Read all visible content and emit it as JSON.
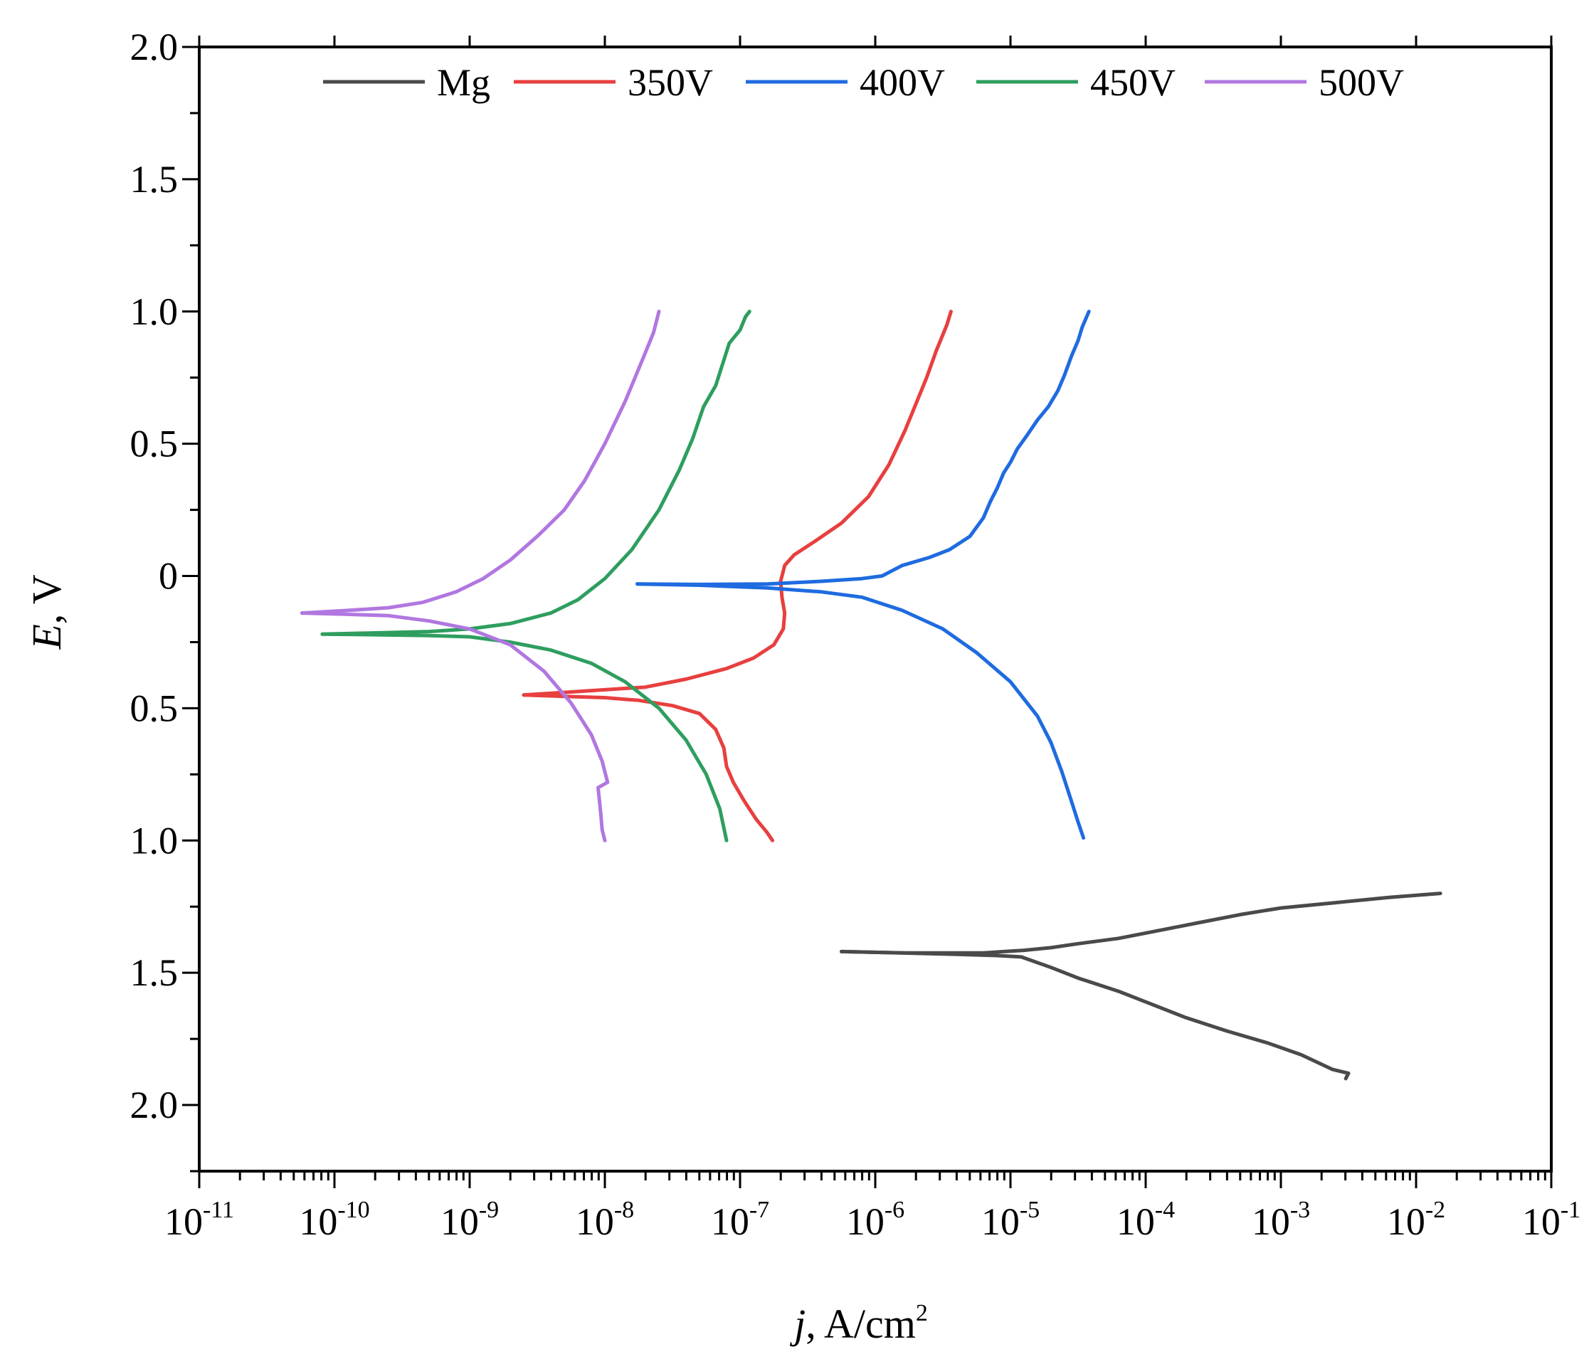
{
  "chart_data": {
    "type": "line",
    "xlabel_italic": "j",
    "xlabel_rest": ", A/cm",
    "xlabel_sup": "2",
    "ylabel_italic": "E",
    "ylabel_rest": ", V",
    "x_scale": "log",
    "xlim": [
      -11,
      -1
    ],
    "ylim": [
      -2.25,
      2.0
    ],
    "x_ticks": [
      {
        "base": "10",
        "exp": "-11"
      },
      {
        "base": "10",
        "exp": "-10"
      },
      {
        "base": "10",
        "exp": "-9"
      },
      {
        "base": "10",
        "exp": "-8"
      },
      {
        "base": "10",
        "exp": "-7"
      },
      {
        "base": "10",
        "exp": "-6"
      },
      {
        "base": "10",
        "exp": "-5"
      },
      {
        "base": "10",
        "exp": "-4"
      },
      {
        "base": "10",
        "exp": "-3"
      },
      {
        "base": "10",
        "exp": "-2"
      },
      {
        "base": "10",
        "exp": "-1"
      }
    ],
    "y_ticks": [
      {
        "value": 2.0,
        "label": "2.0"
      },
      {
        "value": 1.5,
        "label": "1.5"
      },
      {
        "value": 1.0,
        "label": "1.0"
      },
      {
        "value": 0.5,
        "label": "0.5"
      },
      {
        "value": 0.0,
        "label": "0"
      },
      {
        "value": -0.5,
        "label": "0.5"
      },
      {
        "value": -1.0,
        "label": "1.0"
      },
      {
        "value": -1.5,
        "label": "1.5"
      },
      {
        "value": -2.0,
        "label": "2.0"
      }
    ],
    "legend_position": "top",
    "series": [
      {
        "name": "Mg",
        "color": "#4a4a4a",
        "points": [
          [
            -6.25,
            -1.42
          ],
          [
            -5.8,
            -1.425
          ],
          [
            -5.5,
            -1.425
          ],
          [
            -5.2,
            -1.425
          ],
          [
            -5.05,
            -1.42
          ],
          [
            -4.9,
            -1.415
          ],
          [
            -4.7,
            -1.405
          ],
          [
            -4.5,
            -1.39
          ],
          [
            -4.2,
            -1.37
          ],
          [
            -3.9,
            -1.34
          ],
          [
            -3.6,
            -1.31
          ],
          [
            -3.3,
            -1.28
          ],
          [
            -3.0,
            -1.255
          ],
          [
            -2.6,
            -1.235
          ],
          [
            -2.2,
            -1.215
          ],
          [
            -1.82,
            -1.2
          ]
        ]
      },
      {
        "name": "Mg",
        "color": "#4a4a4a",
        "points": [
          [
            -6.25,
            -1.42
          ],
          [
            -5.8,
            -1.425
          ],
          [
            -5.4,
            -1.43
          ],
          [
            -5.1,
            -1.435
          ],
          [
            -4.92,
            -1.44
          ],
          [
            -4.7,
            -1.48
          ],
          [
            -4.5,
            -1.52
          ],
          [
            -4.2,
            -1.57
          ],
          [
            -3.95,
            -1.62
          ],
          [
            -3.7,
            -1.67
          ],
          [
            -3.4,
            -1.72
          ],
          [
            -3.1,
            -1.765
          ],
          [
            -2.85,
            -1.81
          ],
          [
            -2.62,
            -1.865
          ],
          [
            -2.5,
            -1.88
          ],
          [
            -2.52,
            -1.9
          ]
        ]
      },
      {
        "name": "350V",
        "color": "#e83f3f",
        "points": [
          [
            -8.6,
            -0.45
          ],
          [
            -8.3,
            -0.44
          ],
          [
            -8.0,
            -0.43
          ],
          [
            -7.7,
            -0.42
          ],
          [
            -7.4,
            -0.39
          ],
          [
            -7.1,
            -0.35
          ],
          [
            -6.9,
            -0.31
          ],
          [
            -6.75,
            -0.26
          ],
          [
            -6.68,
            -0.2
          ],
          [
            -6.67,
            -0.14
          ],
          [
            -6.69,
            -0.08
          ],
          [
            -6.7,
            -0.02
          ],
          [
            -6.67,
            0.04
          ],
          [
            -6.6,
            0.08
          ],
          [
            -6.45,
            0.13
          ],
          [
            -6.25,
            0.2
          ],
          [
            -6.05,
            0.3
          ],
          [
            -5.9,
            0.42
          ],
          [
            -5.78,
            0.55
          ],
          [
            -5.7,
            0.65
          ],
          [
            -5.62,
            0.75
          ],
          [
            -5.55,
            0.85
          ],
          [
            -5.47,
            0.95
          ],
          [
            -5.44,
            1.0
          ]
        ]
      },
      {
        "name": "350V",
        "color": "#e83f3f",
        "points": [
          [
            -8.6,
            -0.45
          ],
          [
            -8.3,
            -0.455
          ],
          [
            -8.0,
            -0.46
          ],
          [
            -7.75,
            -0.47
          ],
          [
            -7.5,
            -0.49
          ],
          [
            -7.3,
            -0.52
          ],
          [
            -7.18,
            -0.58
          ],
          [
            -7.12,
            -0.65
          ],
          [
            -7.1,
            -0.72
          ],
          [
            -7.05,
            -0.78
          ],
          [
            -6.97,
            -0.85
          ],
          [
            -6.88,
            -0.92
          ],
          [
            -6.8,
            -0.97
          ],
          [
            -6.76,
            -1.0
          ]
        ]
      },
      {
        "name": "400V",
        "color": "#1f6be0",
        "points": [
          [
            -7.76,
            -0.03
          ],
          [
            -7.3,
            -0.032
          ],
          [
            -6.8,
            -0.03
          ],
          [
            -6.4,
            -0.02
          ],
          [
            -6.1,
            -0.01
          ],
          [
            -5.95,
            0.0
          ],
          [
            -5.8,
            0.04
          ],
          [
            -5.6,
            0.07
          ],
          [
            -5.45,
            0.1
          ],
          [
            -5.3,
            0.15
          ],
          [
            -5.2,
            0.22
          ],
          [
            -5.15,
            0.28
          ],
          [
            -5.1,
            0.33
          ],
          [
            -5.05,
            0.39
          ],
          [
            -5.0,
            0.43
          ],
          [
            -4.95,
            0.48
          ],
          [
            -4.88,
            0.53
          ],
          [
            -4.8,
            0.59
          ],
          [
            -4.72,
            0.64
          ],
          [
            -4.65,
            0.7
          ],
          [
            -4.6,
            0.76
          ],
          [
            -4.55,
            0.83
          ],
          [
            -4.5,
            0.89
          ],
          [
            -4.47,
            0.94
          ],
          [
            -4.42,
            1.0
          ]
        ]
      },
      {
        "name": "400V",
        "color": "#1f6be0",
        "points": [
          [
            -7.76,
            -0.03
          ],
          [
            -7.3,
            -0.035
          ],
          [
            -6.8,
            -0.045
          ],
          [
            -6.4,
            -0.06
          ],
          [
            -6.1,
            -0.08
          ],
          [
            -5.8,
            -0.13
          ],
          [
            -5.5,
            -0.2
          ],
          [
            -5.25,
            -0.29
          ],
          [
            -5.0,
            -0.4
          ],
          [
            -4.8,
            -0.53
          ],
          [
            -4.7,
            -0.63
          ],
          [
            -4.62,
            -0.74
          ],
          [
            -4.55,
            -0.85
          ],
          [
            -4.5,
            -0.93
          ],
          [
            -4.46,
            -0.99
          ]
        ]
      },
      {
        "name": "450V",
        "color": "#2e9e5f",
        "points": [
          [
            -10.09,
            -0.22
          ],
          [
            -9.7,
            -0.215
          ],
          [
            -9.3,
            -0.21
          ],
          [
            -9.0,
            -0.2
          ],
          [
            -8.7,
            -0.18
          ],
          [
            -8.4,
            -0.14
          ],
          [
            -8.2,
            -0.09
          ],
          [
            -8.0,
            -0.01
          ],
          [
            -7.8,
            0.1
          ],
          [
            -7.6,
            0.25
          ],
          [
            -7.45,
            0.4
          ],
          [
            -7.35,
            0.52
          ],
          [
            -7.27,
            0.64
          ],
          [
            -7.18,
            0.72
          ],
          [
            -7.13,
            0.8
          ],
          [
            -7.08,
            0.88
          ],
          [
            -7.0,
            0.93
          ],
          [
            -6.96,
            0.98
          ],
          [
            -6.93,
            1.0
          ]
        ]
      },
      {
        "name": "450V",
        "color": "#2e9e5f",
        "points": [
          [
            -10.09,
            -0.22
          ],
          [
            -9.7,
            -0.222
          ],
          [
            -9.3,
            -0.225
          ],
          [
            -9.0,
            -0.23
          ],
          [
            -8.7,
            -0.25
          ],
          [
            -8.4,
            -0.28
          ],
          [
            -8.1,
            -0.33
          ],
          [
            -7.85,
            -0.4
          ],
          [
            -7.6,
            -0.5
          ],
          [
            -7.4,
            -0.62
          ],
          [
            -7.25,
            -0.75
          ],
          [
            -7.15,
            -0.88
          ],
          [
            -7.1,
            -1.0
          ]
        ]
      },
      {
        "name": "500V",
        "color": "#b177e0",
        "points": [
          [
            -10.24,
            -0.14
          ],
          [
            -9.9,
            -0.13
          ],
          [
            -9.6,
            -0.12
          ],
          [
            -9.35,
            -0.1
          ],
          [
            -9.1,
            -0.06
          ],
          [
            -8.9,
            -0.01
          ],
          [
            -8.7,
            0.06
          ],
          [
            -8.5,
            0.15
          ],
          [
            -8.3,
            0.25
          ],
          [
            -8.15,
            0.36
          ],
          [
            -8.0,
            0.5
          ],
          [
            -7.85,
            0.66
          ],
          [
            -7.72,
            0.82
          ],
          [
            -7.64,
            0.92
          ],
          [
            -7.6,
            1.0
          ]
        ]
      },
      {
        "name": "500V",
        "color": "#b177e0",
        "points": [
          [
            -10.24,
            -0.14
          ],
          [
            -9.9,
            -0.145
          ],
          [
            -9.6,
            -0.15
          ],
          [
            -9.3,
            -0.17
          ],
          [
            -9.0,
            -0.2
          ],
          [
            -8.7,
            -0.26
          ],
          [
            -8.45,
            -0.36
          ],
          [
            -8.25,
            -0.48
          ],
          [
            -8.1,
            -0.6
          ],
          [
            -8.02,
            -0.7
          ],
          [
            -7.98,
            -0.78
          ],
          [
            -8.05,
            -0.8
          ],
          [
            -8.03,
            -0.9
          ],
          [
            -8.02,
            -0.96
          ],
          [
            -8.0,
            -1.0
          ]
        ]
      }
    ],
    "legend": [
      {
        "name": "Mg",
        "color": "#4a4a4a"
      },
      {
        "name": "350V",
        "color": "#e83f3f"
      },
      {
        "name": "400V",
        "color": "#1f6be0"
      },
      {
        "name": "450V",
        "color": "#2e9e5f"
      },
      {
        "name": "500V",
        "color": "#b177e0"
      }
    ]
  }
}
